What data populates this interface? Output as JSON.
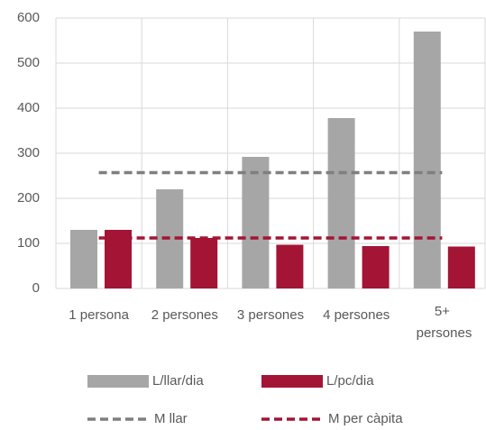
{
  "chart_data": {
    "type": "bar",
    "categories": [
      "1 persona",
      "2 persones",
      "3 persones",
      "4 persones",
      "5+ persones"
    ],
    "series": [
      {
        "name": "L/llar/dia",
        "color": "#a6a6a6",
        "kind": "bar",
        "values": [
          130,
          220,
          292,
          378,
          570
        ]
      },
      {
        "name": "L/pc/dia",
        "color": "#a31435",
        "kind": "bar",
        "values": [
          130,
          112,
          97,
          94,
          93
        ]
      },
      {
        "name": "M llar",
        "color": "#7f7f7f",
        "kind": "line",
        "dashed": true,
        "values": [
          257,
          257,
          257,
          257,
          257
        ]
      },
      {
        "name": "M per càpita",
        "color": "#a31435",
        "kind": "line",
        "dashed": true,
        "values": [
          112,
          112,
          112,
          112,
          112
        ]
      }
    ],
    "ylim": [
      0,
      600
    ],
    "yticks": [
      0,
      100,
      200,
      300,
      400,
      500,
      600
    ],
    "grid": true,
    "legend": "bottom"
  }
}
